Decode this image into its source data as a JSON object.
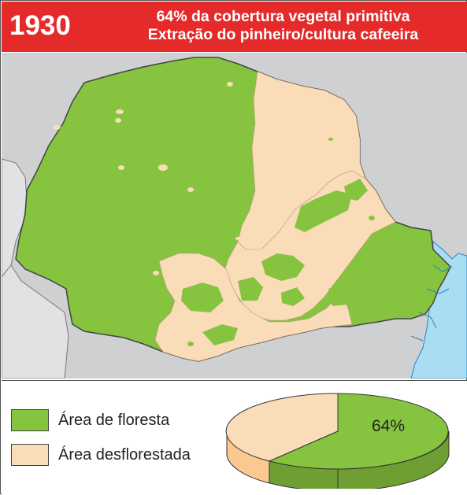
{
  "header": {
    "year": "1930",
    "title_line1": "64% da cobertura vegetal primitiva",
    "title_line2": "Extração do pinheiro/cultura cafeeira"
  },
  "legend": {
    "forest_label": "Área de floresta",
    "deforested_label": "Área desflorestada"
  },
  "colors": {
    "header": "#e52a2a",
    "forest": "#86c440",
    "deforested": "#fbdcb8",
    "neighbor_land": "#d6d7d9",
    "sea": "#a9ddf2"
  },
  "pie": {
    "forest_percent": 64,
    "label": "64%"
  }
}
